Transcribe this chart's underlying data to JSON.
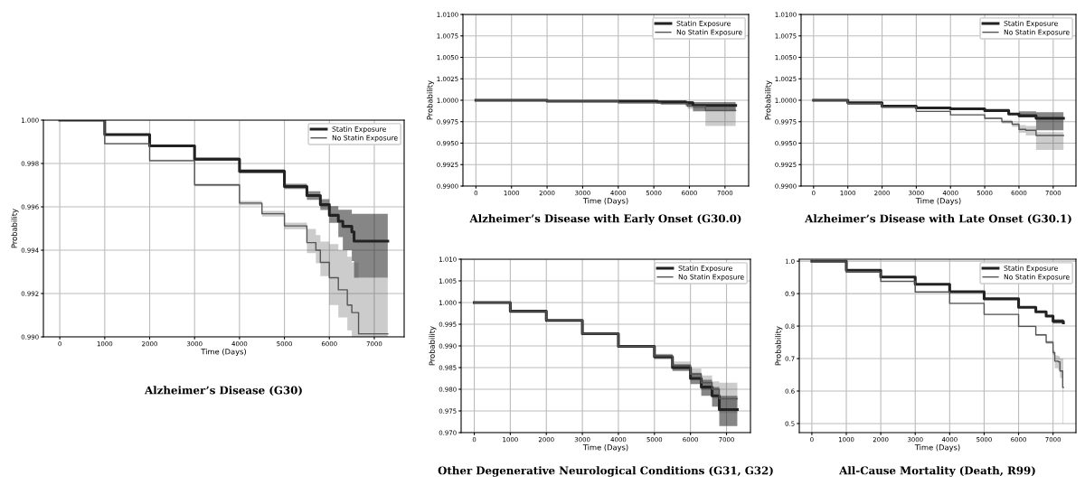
{
  "chart_data": [
    {
      "type": "step",
      "title": "Alzheimer’s Disease (G30)",
      "xlabel": "Time (Days)",
      "ylabel": "Probability",
      "legend": "top right",
      "grid": true,
      "xlim": [
        -365,
        7665
      ],
      "ylim": [
        0.99,
        1.0
      ],
      "xticks": [
        0,
        1000,
        2000,
        3000,
        4000,
        5000,
        6000,
        7000
      ],
      "yticks": [
        {
          "value": 0.99,
          "label": "0.990"
        },
        {
          "value": 0.992,
          "label": "0.992"
        },
        {
          "value": 0.994,
          "label": "0.994"
        },
        {
          "value": 0.996,
          "label": "0.996"
        },
        {
          "value": 0.998,
          "label": "0.998"
        },
        {
          "value": 1.0,
          "label": "1.000"
        }
      ],
      "series": [
        {
          "name": "Statin Exposure",
          "color": "#222222",
          "x": [
            0,
            1000,
            2000,
            3000,
            4000,
            5000,
            5500,
            5800,
            6000,
            6200,
            6300,
            6500,
            6550,
            7300
          ],
          "values": [
            1.0,
            0.99933,
            0.99881,
            0.9982,
            0.99764,
            0.99694,
            0.99652,
            0.9961,
            0.99561,
            0.99533,
            0.9951,
            0.99484,
            0.99442,
            0.99442
          ],
          "lower": [
            1.0,
            0.99928,
            0.99875,
            0.99813,
            0.99755,
            0.99682,
            0.99632,
            0.99585,
            0.99526,
            0.9946,
            0.994,
            0.9935,
            0.99273,
            0.99273
          ],
          "upper": [
            1.0,
            0.99938,
            0.99887,
            0.99827,
            0.99773,
            0.99706,
            0.99672,
            0.99635,
            0.99603,
            0.99586,
            0.99586,
            0.99568,
            0.99568,
            0.99568
          ]
        },
        {
          "name": "No Statin Exposure",
          "color": "#555555",
          "x": [
            0,
            1000,
            2000,
            3000,
            4000,
            4500,
            5000,
            5500,
            5700,
            5800,
            6000,
            6200,
            6400,
            6500,
            6650,
            7300
          ],
          "values": [
            1.0,
            0.99891,
            0.99813,
            0.99701,
            0.99617,
            0.99568,
            0.99512,
            0.99435,
            0.994,
            0.99344,
            0.99273,
            0.99217,
            0.99147,
            0.99112,
            0.99014,
            0.99014
          ],
          "lower": [
            1.0,
            0.99887,
            0.99808,
            0.99695,
            0.99607,
            0.99555,
            0.99497,
            0.99386,
            0.9934,
            0.9928,
            0.99147,
            0.9909,
            0.9903,
            0.99,
            0.99,
            0.99
          ],
          "upper": [
            1.0,
            0.99895,
            0.99818,
            0.99707,
            0.99627,
            0.99581,
            0.99527,
            0.99498,
            0.9947,
            0.9944,
            0.99428,
            0.994,
            0.9937,
            0.99344,
            0.99273,
            0.99273
          ]
        }
      ]
    },
    {
      "type": "step",
      "title": "Alzheimer’s Disease with Early Onset (G30.0)",
      "xlabel": "Time (Days)",
      "ylabel": "Probability",
      "legend": "top right",
      "grid": true,
      "xlim": [
        -365,
        7665
      ],
      "ylim": [
        0.99,
        1.01
      ],
      "xticks": [
        0,
        1000,
        2000,
        3000,
        4000,
        5000,
        6000,
        7000
      ],
      "yticks": [
        {
          "value": 0.99,
          "label": "0.9900"
        },
        {
          "value": 0.9925,
          "label": "0.9925"
        },
        {
          "value": 0.995,
          "label": "0.9950"
        },
        {
          "value": 0.9975,
          "label": "0.9975"
        },
        {
          "value": 1.0,
          "label": "1.0000"
        },
        {
          "value": 1.0025,
          "label": "1.0025"
        },
        {
          "value": 1.005,
          "label": "1.0050"
        },
        {
          "value": 1.0075,
          "label": "1.0075"
        },
        {
          "value": 1.01,
          "label": "1.0100"
        }
      ],
      "series": [
        {
          "name": "Statin Exposure",
          "color": "#222222",
          "x": [
            0,
            2000,
            4000,
            5100,
            5900,
            6100,
            7300
          ],
          "values": [
            1.0,
            0.9999,
            0.9999,
            0.9998,
            0.9997,
            0.9994,
            0.9994
          ],
          "lower": [
            1.0,
            0.9999,
            0.9998,
            0.9997,
            0.9993,
            0.9987,
            0.9987
          ],
          "upper": [
            1.0,
            1.0,
            0.9999,
            0.9999,
            0.9999,
            0.9998,
            0.9998
          ]
        },
        {
          "name": "No Statin Exposure",
          "color": "#555555",
          "x": [
            0,
            2000,
            4000,
            5200,
            5950,
            6450,
            7300
          ],
          "values": [
            1.0,
            0.9999,
            0.9997,
            0.9996,
            0.9993,
            0.9988,
            0.9988
          ],
          "lower": [
            1.0,
            0.9998,
            0.9996,
            0.9995,
            0.999,
            0.997,
            0.997
          ],
          "upper": [
            1.0,
            1.0,
            0.9998,
            0.9997,
            0.9996,
            0.9992,
            0.9992
          ]
        }
      ]
    },
    {
      "type": "step",
      "title": "Alzheimer’s Disease with Late Onset (G30.1)",
      "xlabel": "Time (Days)",
      "ylabel": "Probability",
      "legend": "top right",
      "grid": true,
      "xlim": [
        -365,
        7665
      ],
      "ylim": [
        0.99,
        1.01
      ],
      "xticks": [
        0,
        1000,
        2000,
        3000,
        4000,
        5000,
        6000,
        7000
      ],
      "yticks": [
        {
          "value": 0.99,
          "label": "0.9900"
        },
        {
          "value": 0.9925,
          "label": "0.9925"
        },
        {
          "value": 0.995,
          "label": "0.9950"
        },
        {
          "value": 0.9975,
          "label": "0.9975"
        },
        {
          "value": 1.0,
          "label": "1.0000"
        },
        {
          "value": 1.0025,
          "label": "1.0025"
        },
        {
          "value": 1.005,
          "label": "1.0050"
        },
        {
          "value": 1.0075,
          "label": "1.0075"
        },
        {
          "value": 1.01,
          "label": "1.0100"
        }
      ],
      "series": [
        {
          "name": "Statin Exposure",
          "color": "#222222",
          "x": [
            0,
            1000,
            2000,
            3000,
            4000,
            5000,
            5700,
            6000,
            6500,
            7300
          ],
          "values": [
            1.0,
            0.9997,
            0.9993,
            0.9991,
            0.999,
            0.9988,
            0.9984,
            0.9982,
            0.9979,
            0.9979
          ],
          "lower": [
            1.0,
            0.9996,
            0.9993,
            0.9991,
            0.9989,
            0.9987,
            0.9983,
            0.998,
            0.9965,
            0.9965
          ],
          "upper": [
            1.0,
            0.9997,
            0.9994,
            0.9992,
            0.999,
            0.9989,
            0.9985,
            0.9987,
            0.9986,
            0.9986
          ]
        },
        {
          "name": "No Statin Exposure",
          "color": "#555555",
          "x": [
            0,
            1000,
            2000,
            3000,
            4000,
            5000,
            5500,
            5800,
            6000,
            6200,
            6500,
            7300
          ],
          "values": [
            1.0,
            0.9996,
            0.9992,
            0.9987,
            0.9983,
            0.9979,
            0.9975,
            0.9972,
            0.9966,
            0.9965,
            0.9959,
            0.9959
          ],
          "lower": [
            1.0,
            0.9995,
            0.9991,
            0.9987,
            0.9982,
            0.9978,
            0.9973,
            0.9969,
            0.9962,
            0.9959,
            0.9942,
            0.9942
          ],
          "upper": [
            1.0,
            0.9996,
            0.9992,
            0.9988,
            0.9983,
            0.998,
            0.9977,
            0.9974,
            0.9971,
            0.997,
            0.9963,
            0.9963
          ]
        }
      ]
    },
    {
      "type": "step",
      "title": "Other Degenerative Neurological Conditions (G31, G32)",
      "xlabel": "Time (Days)",
      "ylabel": "Probability",
      "legend": "top right",
      "grid": true,
      "xlim": [
        -365,
        7665
      ],
      "ylim": [
        0.97,
        1.01
      ],
      "xticks": [
        0,
        1000,
        2000,
        3000,
        4000,
        5000,
        6000,
        7000
      ],
      "yticks": [
        {
          "value": 0.97,
          "label": "0.970"
        },
        {
          "value": 0.975,
          "label": "0.975"
        },
        {
          "value": 0.98,
          "label": "0.980"
        },
        {
          "value": 0.985,
          "label": "0.985"
        },
        {
          "value": 0.99,
          "label": "0.990"
        },
        {
          "value": 0.995,
          "label": "0.995"
        },
        {
          "value": 1.0,
          "label": "1.000"
        },
        {
          "value": 1.005,
          "label": "1.005"
        },
        {
          "value": 1.01,
          "label": "1.010"
        }
      ],
      "series": [
        {
          "name": "Statin Exposure",
          "color": "#222222",
          "x": [
            0,
            1000,
            2000,
            3000,
            4000,
            5000,
            5500,
            6000,
            6300,
            6600,
            6800,
            7300
          ],
          "values": [
            1.0,
            0.998,
            0.9959,
            0.9928,
            0.9899,
            0.9875,
            0.985,
            0.9825,
            0.9805,
            0.9785,
            0.9753,
            0.9753
          ],
          "lower": [
            1.0,
            0.9979,
            0.9958,
            0.9926,
            0.9896,
            0.987,
            0.9842,
            0.9812,
            0.9785,
            0.976,
            0.9715,
            0.9715
          ],
          "upper": [
            1.0,
            0.9981,
            0.996,
            0.993,
            0.9902,
            0.988,
            0.9858,
            0.9838,
            0.9822,
            0.9805,
            0.9785,
            0.9785
          ]
        },
        {
          "name": "No Statin Exposure",
          "color": "#555555",
          "x": [
            0,
            1000,
            2000,
            3000,
            4000,
            5000,
            5500,
            6000,
            6300,
            6600,
            6800,
            7300
          ],
          "values": [
            1.0,
            0.998,
            0.9959,
            0.9928,
            0.9899,
            0.9877,
            0.9855,
            0.9835,
            0.9815,
            0.98,
            0.9778,
            0.9778
          ],
          "lower": [
            1.0,
            0.9979,
            0.9958,
            0.9926,
            0.9896,
            0.9872,
            0.9846,
            0.9822,
            0.9798,
            0.9778,
            0.9745,
            0.9745
          ],
          "upper": [
            1.0,
            0.9981,
            0.996,
            0.993,
            0.9902,
            0.9882,
            0.9864,
            0.9848,
            0.9832,
            0.9818,
            0.9815,
            0.9815
          ]
        }
      ]
    },
    {
      "type": "step",
      "title": "All-Cause Mortality (Death, R99)",
      "xlabel": "Time (Days)",
      "ylabel": "Probability",
      "legend": "top right",
      "grid": true,
      "xlim": [
        -365,
        7665
      ],
      "ylim": [
        0.472,
        1.006
      ],
      "xticks": [
        0,
        1000,
        2000,
        3000,
        4000,
        5000,
        6000,
        7000
      ],
      "yticks": [
        {
          "value": 0.5,
          "label": "0.5"
        },
        {
          "value": 0.6,
          "label": "0.6"
        },
        {
          "value": 0.7,
          "label": "0.7"
        },
        {
          "value": 0.8,
          "label": "0.8"
        },
        {
          "value": 0.9,
          "label": "0.9"
        },
        {
          "value": 1.0,
          "label": "1.0"
        }
      ],
      "series": [
        {
          "name": "Statin Exposure",
          "color": "#222222",
          "x": [
            0,
            1000,
            2000,
            3000,
            4000,
            5000,
            6000,
            6500,
            6800,
            7000,
            7300
          ],
          "values": [
            1.0,
            0.972,
            0.951,
            0.929,
            0.906,
            0.884,
            0.858,
            0.844,
            0.831,
            0.815,
            0.81
          ],
          "lower": [
            1.0,
            0.971,
            0.95,
            0.928,
            0.905,
            0.883,
            0.856,
            0.842,
            0.828,
            0.808,
            0.804
          ],
          "upper": [
            1.0,
            0.973,
            0.952,
            0.93,
            0.907,
            0.885,
            0.86,
            0.846,
            0.834,
            0.821,
            0.816
          ]
        },
        {
          "name": "No Statin Exposure",
          "color": "#555555",
          "x": [
            0,
            1000,
            2000,
            3000,
            4000,
            5000,
            6000,
            6500,
            6800,
            7000,
            7050,
            7150,
            7200,
            7280,
            7300
          ],
          "values": [
            1.0,
            0.966,
            0.938,
            0.905,
            0.87,
            0.836,
            0.799,
            0.773,
            0.75,
            0.718,
            0.692,
            0.69,
            0.662,
            0.611,
            0.611
          ],
          "lower": [
            1.0,
            0.965,
            0.937,
            0.904,
            0.869,
            0.835,
            0.797,
            0.77,
            0.745,
            0.71,
            0.67,
            0.665,
            0.64,
            0.5,
            0.5
          ],
          "upper": [
            1.0,
            0.967,
            0.939,
            0.906,
            0.871,
            0.837,
            0.801,
            0.776,
            0.755,
            0.725,
            0.71,
            0.708,
            0.7,
            0.7,
            0.7
          ]
        }
      ]
    }
  ]
}
